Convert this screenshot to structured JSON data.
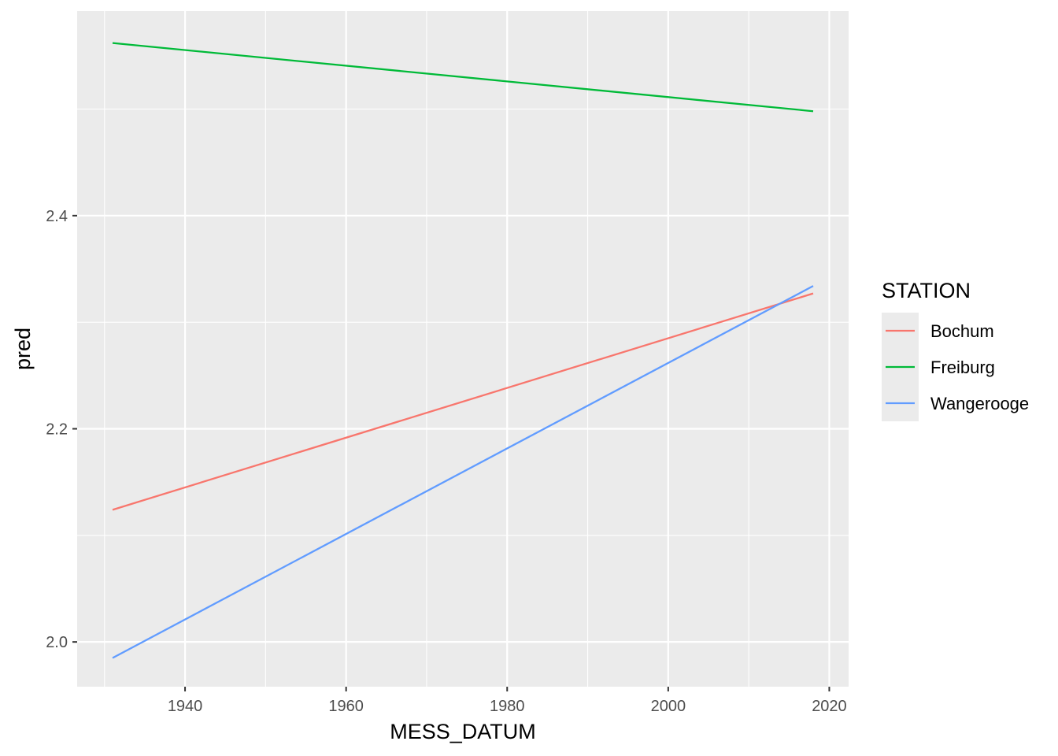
{
  "chart_data": {
    "type": "line",
    "xlabel": "MESS_DATUM",
    "ylabel": "pred",
    "xlim": [
      1926.6,
      2022.4
    ],
    "ylim": [
      1.958,
      2.592
    ],
    "x_ticks": [
      1940,
      1960,
      1980,
      2000,
      2020
    ],
    "x_minor_ticks": [
      1930,
      1950,
      1970,
      1990,
      2010
    ],
    "y_ticks": [
      2.0,
      2.2,
      2.4
    ],
    "y_minor_ticks": [
      2.1,
      2.3,
      2.5
    ],
    "x_tick_labels": [
      "1940",
      "1960",
      "1980",
      "2000",
      "2020"
    ],
    "y_tick_labels": [
      "2.0",
      "2.2",
      "2.4"
    ],
    "grid": true,
    "legend": {
      "title": "STATION",
      "position": "right",
      "entries": [
        "Bochum",
        "Freiburg",
        "Wangerooge"
      ]
    },
    "series": [
      {
        "name": "Bochum",
        "color": "#F8766D",
        "x": [
          1931,
          2018
        ],
        "y": [
          2.124,
          2.327
        ]
      },
      {
        "name": "Freiburg",
        "color": "#00BA38",
        "x": [
          1931,
          2018
        ],
        "y": [
          2.562,
          2.498
        ]
      },
      {
        "name": "Wangerooge",
        "color": "#619CFF",
        "x": [
          1931,
          2018
        ],
        "y": [
          1.985,
          2.334
        ]
      }
    ]
  }
}
